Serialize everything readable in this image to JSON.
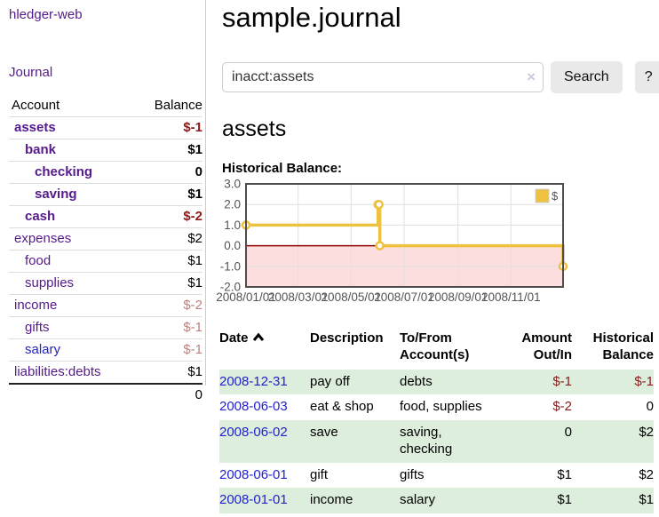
{
  "sidebar": {
    "brand": "hledger-web",
    "nav": {
      "journal": "Journal"
    },
    "accounts_table": {
      "col_account": "Account",
      "col_balance": "Balance",
      "rows": [
        {
          "name": "assets",
          "balance": "$-1"
        },
        {
          "name": "bank",
          "balance": "$1"
        },
        {
          "name": "checking",
          "balance": "0"
        },
        {
          "name": "saving",
          "balance": "$1"
        },
        {
          "name": "cash",
          "balance": "$-2"
        },
        {
          "name": "expenses",
          "balance": "$2"
        },
        {
          "name": "food",
          "balance": "$1"
        },
        {
          "name": "supplies",
          "balance": "$1"
        },
        {
          "name": "income",
          "balance": "$-2"
        },
        {
          "name": "gifts",
          "balance": "$-1"
        },
        {
          "name": "salary",
          "balance": "$-1"
        },
        {
          "name": "liabilities:debts",
          "balance": "$1"
        }
      ],
      "total": "0"
    }
  },
  "header": {
    "title": "sample.journal"
  },
  "search": {
    "value": "inacct:assets",
    "clear_icon": "×",
    "search_button": "Search",
    "help_button": "?"
  },
  "account_view": {
    "heading": "assets",
    "chart_title": "Historical Balance:"
  },
  "chart_data": {
    "type": "line",
    "step": true,
    "title": "Historical Balance:",
    "legend": [
      {
        "label": "$",
        "color": "#edc240"
      }
    ],
    "legend_position": "top-right",
    "grid": true,
    "x_range": [
      "2008-01-01",
      "2008-12-31"
    ],
    "ylim": [
      -2,
      3
    ],
    "y_ticks": [
      "3.0",
      "2.0",
      "1.0",
      "0.0",
      "-1.0",
      "-2.0"
    ],
    "x_ticks": [
      {
        "label": "2008/01/01",
        "date": "2008-01-01"
      },
      {
        "label": "2008/03/01",
        "date": "2008-03-01"
      },
      {
        "label": "2008/05/01",
        "date": "2008-05-01"
      },
      {
        "label": "2008/07/01",
        "date": "2008-07-01"
      },
      {
        "label": "2008/09/01",
        "date": "2008-09-01"
      },
      {
        "label": "2008/11/01",
        "date": "2008-11-01"
      }
    ],
    "series": [
      {
        "name": "$",
        "color": "#edc240",
        "points": [
          {
            "date": "2008-01-01",
            "value": 1
          },
          {
            "date": "2008-06-01",
            "value": 2
          },
          {
            "date": "2008-06-02",
            "value": 2
          },
          {
            "date": "2008-06-03",
            "value": 0
          },
          {
            "date": "2008-12-31",
            "value": -1
          }
        ]
      }
    ],
    "zero_line_color": "#8b0000",
    "negative_region_color": "#fcdede",
    "grid_color": "#e0e0e0",
    "border_color": "#4d4d4d",
    "tick_label_color": "#545454"
  },
  "register": {
    "headers": {
      "date": "Date",
      "description": "Description",
      "tofrom_line1": "To/From",
      "tofrom_line2": "Account(s)",
      "amount_line1": "Amount",
      "amount_line2": "Out/In",
      "balance_line1": "Historical",
      "balance_line2": "Balance"
    },
    "rows": [
      {
        "date": "2008-12-31",
        "description": "pay off",
        "accounts": "debts",
        "amount": "$-1",
        "balance": "$-1"
      },
      {
        "date": "2008-06-03",
        "description": "eat & shop",
        "accounts": "food, supplies",
        "amount": "$-2",
        "balance": "0"
      },
      {
        "date": "2008-06-02",
        "description": "save",
        "accounts": "saving, checking",
        "amount": "0",
        "balance": "$2"
      },
      {
        "date": "2008-06-01",
        "description": "gift",
        "accounts": "gifts",
        "amount": "$1",
        "balance": "$2"
      },
      {
        "date": "2008-01-01",
        "description": "income",
        "accounts": "salary",
        "amount": "$1",
        "balance": "$1"
      }
    ]
  },
  "colors": {
    "link_purple": "#551a8b",
    "link_blue": "#2222cc",
    "negative_red": "#8b1a1a",
    "negative_faded": "#bd8080",
    "row_stripe_green": "#ddeedd",
    "chart_series_yellow": "#edc240",
    "button_gray": "#e9e9e9"
  }
}
